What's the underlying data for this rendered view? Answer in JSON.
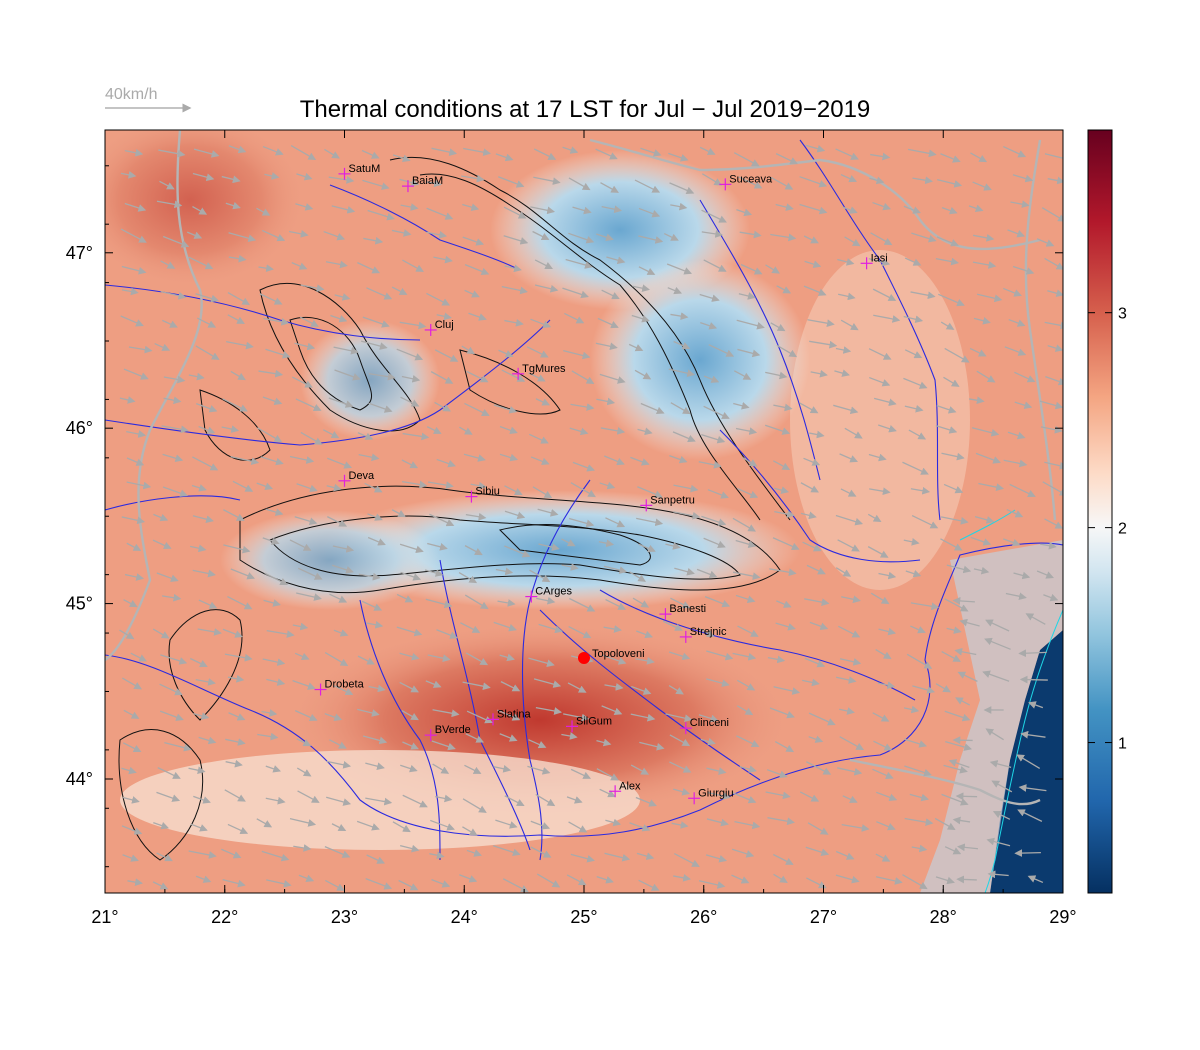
{
  "title": "Thermal conditions at 17 LST for Jul − Jul  2019−2019",
  "wind_scale": {
    "label": "40km/h",
    "color": "#b0b0b0"
  },
  "map": {
    "lon_range": [
      21,
      29
    ],
    "lat_range": [
      43.35,
      47.7
    ],
    "lon_ticks": [
      "21°",
      "22°",
      "23°",
      "24°",
      "25°",
      "26°",
      "27°",
      "28°",
      "29°"
    ],
    "lon_values": [
      21,
      22,
      23,
      24,
      25,
      26,
      27,
      28,
      29
    ],
    "lat_ticks": [
      "44°",
      "45°",
      "46°",
      "47°"
    ],
    "lat_values": [
      44,
      45,
      46,
      47
    ]
  },
  "colorbar": {
    "ticks": [
      "1",
      "2",
      "3"
    ],
    "values": [
      1,
      2,
      3
    ],
    "range": [
      0.3,
      3.85
    ],
    "colors": [
      "#053061",
      "#2166ac",
      "#4393c3",
      "#92c5de",
      "#d1e5f0",
      "#f7f7f7",
      "#fddbc7",
      "#f4a582",
      "#d6604d",
      "#b2182b",
      "#67001f"
    ]
  },
  "cities": [
    {
      "name": "SatuM",
      "lon": 23.0,
      "lat": 47.45
    },
    {
      "name": "BaiaM",
      "lon": 23.53,
      "lat": 47.38
    },
    {
      "name": "Suceava",
      "lon": 26.18,
      "lat": 47.39
    },
    {
      "name": "Iasi",
      "lon": 27.36,
      "lat": 46.94
    },
    {
      "name": "Cluj",
      "lon": 23.72,
      "lat": 46.56
    },
    {
      "name": "TgMures",
      "lon": 24.45,
      "lat": 46.31
    },
    {
      "name": "Deva",
      "lon": 23.0,
      "lat": 45.7
    },
    {
      "name": "Sibiu",
      "lon": 24.06,
      "lat": 45.61
    },
    {
      "name": "Sanpetru",
      "lon": 25.52,
      "lat": 45.56
    },
    {
      "name": "CArges",
      "lon": 24.56,
      "lat": 45.04
    },
    {
      "name": "Banesti",
      "lon": 25.68,
      "lat": 44.94
    },
    {
      "name": "Strejnic",
      "lon": 25.85,
      "lat": 44.81
    },
    {
      "name": "Drobeta",
      "lon": 22.8,
      "lat": 44.51
    },
    {
      "name": "Slatina",
      "lon": 24.24,
      "lat": 44.34
    },
    {
      "name": "SilGum",
      "lon": 24.9,
      "lat": 44.3
    },
    {
      "name": "BVerde",
      "lon": 23.72,
      "lat": 44.25
    },
    {
      "name": "Clinceni",
      "lon": 25.85,
      "lat": 44.29
    },
    {
      "name": "Alex",
      "lon": 25.26,
      "lat": 43.93
    },
    {
      "name": "Giurgiu",
      "lon": 25.92,
      "lat": 43.89
    }
  ],
  "highlight": {
    "name": "Topoloveni",
    "lon": 25.0,
    "lat": 44.69,
    "color": "#ff0000"
  }
}
